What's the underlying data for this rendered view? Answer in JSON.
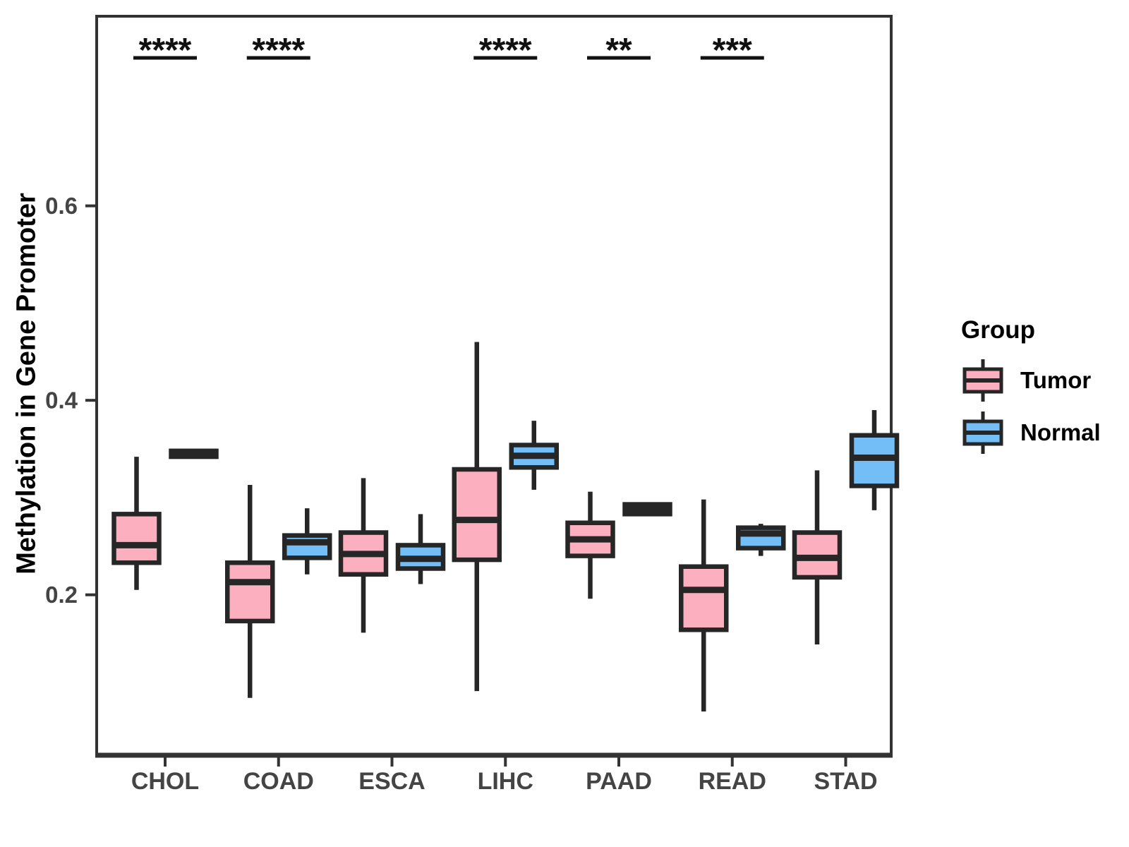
{
  "y_axis": {
    "label": "Methylation in Gene Promoter",
    "tick_labels": [
      "0.2",
      "0.4",
      "0.6"
    ]
  },
  "x_axis": {
    "tick_labels": [
      "CHOL",
      "COAD",
      "ESCA",
      "LIHC",
      "PAAD",
      "READ",
      "STAD"
    ]
  },
  "legend": {
    "title": "Group",
    "entries": [
      {
        "label": "Tumor",
        "color": "#FBAFBF"
      },
      {
        "label": "Normal",
        "color": "#74BEF7"
      }
    ]
  },
  "colors": {
    "tumor_fill": "#FBAFBF",
    "normal_fill": "#74BEF7",
    "box_stroke": "#262626",
    "panel_border": "#333333",
    "tick_text": "#444444",
    "annotation": "#111111"
  },
  "chart_data": {
    "type": "boxplot",
    "title": "",
    "xlabel": "",
    "ylabel": "Methylation in Gene Promoter",
    "categories": [
      "CHOL",
      "COAD",
      "ESCA",
      "LIHC",
      "PAAD",
      "READ",
      "STAD"
    ],
    "significance": [
      "****",
      "****",
      null,
      "****",
      "**",
      "***",
      null
    ],
    "ylim": [
      0.035,
      0.795
    ],
    "yticks": [
      0.2,
      0.4,
      0.6
    ],
    "grid": false,
    "legend_position": "right",
    "series": [
      {
        "name": "Tumor",
        "color": "#FBAFBF",
        "stats": [
          {
            "category": "CHOL",
            "min": 0.205,
            "q1": 0.233,
            "median": 0.251,
            "q3": 0.283,
            "max": 0.342
          },
          {
            "category": "COAD",
            "min": 0.094,
            "q1": 0.173,
            "median": 0.213,
            "q3": 0.233,
            "max": 0.313
          },
          {
            "category": "ESCA",
            "min": 0.161,
            "q1": 0.221,
            "median": 0.242,
            "q3": 0.264,
            "max": 0.32
          },
          {
            "category": "LIHC",
            "min": 0.101,
            "q1": 0.236,
            "median": 0.277,
            "q3": 0.329,
            "max": 0.46
          },
          {
            "category": "PAAD",
            "min": 0.196,
            "q1": 0.24,
            "median": 0.257,
            "q3": 0.274,
            "max": 0.306
          },
          {
            "category": "READ",
            "min": 0.08,
            "q1": 0.164,
            "median": 0.205,
            "q3": 0.229,
            "max": 0.298
          },
          {
            "category": "STAD",
            "min": 0.149,
            "q1": 0.218,
            "median": 0.238,
            "q3": 0.264,
            "max": 0.328
          }
        ]
      },
      {
        "name": "Normal",
        "color": "#74BEF7",
        "stats": [
          {
            "category": "CHOL",
            "min": 0.341,
            "q1": 0.342,
            "median": 0.345,
            "q3": 0.348,
            "max": 0.349
          },
          {
            "category": "COAD",
            "min": 0.221,
            "q1": 0.238,
            "median": 0.254,
            "q3": 0.261,
            "max": 0.289
          },
          {
            "category": "ESCA",
            "min": 0.211,
            "q1": 0.227,
            "median": 0.237,
            "q3": 0.251,
            "max": 0.283
          },
          {
            "category": "LIHC",
            "min": 0.308,
            "q1": 0.331,
            "median": 0.343,
            "q3": 0.354,
            "max": 0.379
          },
          {
            "category": "PAAD",
            "min": 0.281,
            "q1": 0.283,
            "median": 0.288,
            "q3": 0.293,
            "max": 0.295
          },
          {
            "category": "READ",
            "min": 0.24,
            "q1": 0.248,
            "median": 0.263,
            "q3": 0.269,
            "max": 0.273
          },
          {
            "category": "STAD",
            "min": 0.287,
            "q1": 0.312,
            "median": 0.341,
            "q3": 0.364,
            "max": 0.39
          }
        ]
      }
    ]
  }
}
